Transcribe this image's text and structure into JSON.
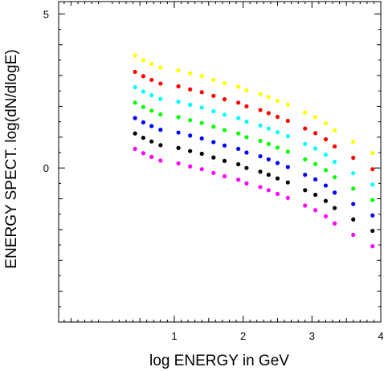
{
  "chart_data": {
    "type": "scatter",
    "title": "",
    "xlabel": "log ENERGY  in GeV",
    "ylabel": "ENERGY SPECT. log(dN/dlogE)",
    "xlim": [
      -0.68,
      4.0
    ],
    "ylim": [
      -5.0,
      5.4
    ],
    "x_ticks": [
      1,
      2,
      3,
      4
    ],
    "x_tick_labels": [
      "1",
      "2",
      "3",
      "4"
    ],
    "y_ticks": [
      0,
      5
    ],
    "y_tick_labels": [
      "0",
      "5"
    ],
    "grid": false,
    "x": [
      0.43,
      0.55,
      0.67,
      0.8,
      1.06,
      1.23,
      1.4,
      1.57,
      1.73,
      1.93,
      2.05,
      2.25,
      2.37,
      2.5,
      2.65,
      2.9,
      3.05,
      3.2,
      3.33,
      3.6,
      3.88
    ],
    "series": [
      {
        "color": "#ffff00",
        "values": [
          3.65,
          3.5,
          3.38,
          3.26,
          3.17,
          3.07,
          2.98,
          2.86,
          2.75,
          2.64,
          2.52,
          2.4,
          2.3,
          2.18,
          2.05,
          1.8,
          1.65,
          1.45,
          1.22,
          0.85,
          0.48
        ]
      },
      {
        "color": "#ff0000",
        "values": [
          3.12,
          2.98,
          2.86,
          2.74,
          2.65,
          2.55,
          2.46,
          2.34,
          2.23,
          2.12,
          2.0,
          1.88,
          1.78,
          1.66,
          1.53,
          1.28,
          1.13,
          0.93,
          0.7,
          0.33,
          -0.04
        ]
      },
      {
        "color": "#00ffff",
        "values": [
          2.62,
          2.48,
          2.36,
          2.24,
          2.15,
          2.05,
          1.96,
          1.84,
          1.73,
          1.62,
          1.5,
          1.38,
          1.28,
          1.16,
          1.03,
          0.78,
          0.63,
          0.43,
          0.2,
          -0.17,
          -0.54
        ]
      },
      {
        "color": "#00ff00",
        "values": [
          2.12,
          1.98,
          1.86,
          1.74,
          1.65,
          1.55,
          1.46,
          1.34,
          1.23,
          1.12,
          1.0,
          0.88,
          0.78,
          0.66,
          0.53,
          0.28,
          0.13,
          -0.07,
          -0.3,
          -0.67,
          -1.04
        ]
      },
      {
        "color": "#0000ff",
        "values": [
          1.62,
          1.48,
          1.36,
          1.24,
          1.15,
          1.05,
          0.96,
          0.84,
          0.73,
          0.62,
          0.5,
          0.38,
          0.28,
          0.16,
          0.03,
          -0.22,
          -0.37,
          -0.57,
          -0.8,
          -1.17,
          -1.54
        ]
      },
      {
        "color": "#000000",
        "values": [
          1.12,
          0.98,
          0.86,
          0.74,
          0.65,
          0.55,
          0.46,
          0.34,
          0.23,
          0.12,
          0.0,
          -0.12,
          -0.22,
          -0.34,
          -0.47,
          -0.72,
          -0.87,
          -1.07,
          -1.3,
          -1.67,
          -2.04
        ]
      },
      {
        "color": "#ff00ff",
        "values": [
          0.62,
          0.48,
          0.36,
          0.24,
          0.15,
          0.05,
          -0.04,
          -0.16,
          -0.27,
          -0.38,
          -0.5,
          -0.62,
          -0.72,
          -0.84,
          -0.97,
          -1.22,
          -1.37,
          -1.57,
          -1.8,
          -2.17,
          -2.54
        ]
      }
    ]
  }
}
